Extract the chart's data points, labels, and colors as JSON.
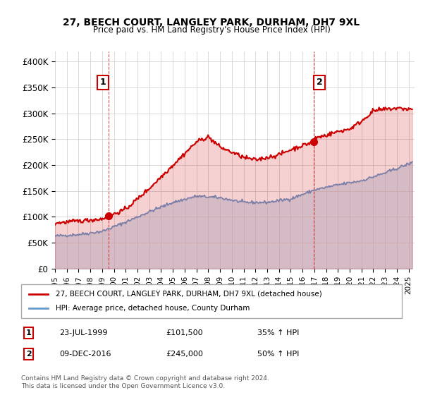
{
  "title": "27, BEECH COURT, LANGLEY PARK, DURHAM, DH7 9XL",
  "subtitle": "Price paid vs. HM Land Registry's House Price Index (HPI)",
  "legend_line1": "27, BEECH COURT, LANGLEY PARK, DURHAM, DH7 9XL (detached house)",
  "legend_line2": "HPI: Average price, detached house, County Durham",
  "annotation1_label": "1",
  "annotation1_date": "23-JUL-1999",
  "annotation1_price": "£101,500",
  "annotation1_note": "35% ↑ HPI",
  "annotation2_label": "2",
  "annotation2_date": "09-DEC-2016",
  "annotation2_price": "£245,000",
  "annotation2_note": "50% ↑ HPI",
  "footnote": "Contains HM Land Registry data © Crown copyright and database right 2024.\nThis data is licensed under the Open Government Licence v3.0.",
  "red_color": "#cc0000",
  "blue_color": "#6699cc",
  "background_color": "#ffffff",
  "grid_color": "#cccccc",
  "ylim": [
    0,
    420000
  ],
  "yticks": [
    0,
    50000,
    100000,
    150000,
    200000,
    250000,
    300000,
    350000,
    400000
  ],
  "ytick_labels": [
    "£0",
    "£50K",
    "£100K",
    "£150K",
    "£200K",
    "£250K",
    "£300K",
    "£350K",
    "£400K"
  ],
  "sale1_x": 1999.55,
  "sale1_y": 101500,
  "sale2_x": 2016.93,
  "sale2_y": 245000,
  "xmin": 1995,
  "xmax": 2025.5
}
